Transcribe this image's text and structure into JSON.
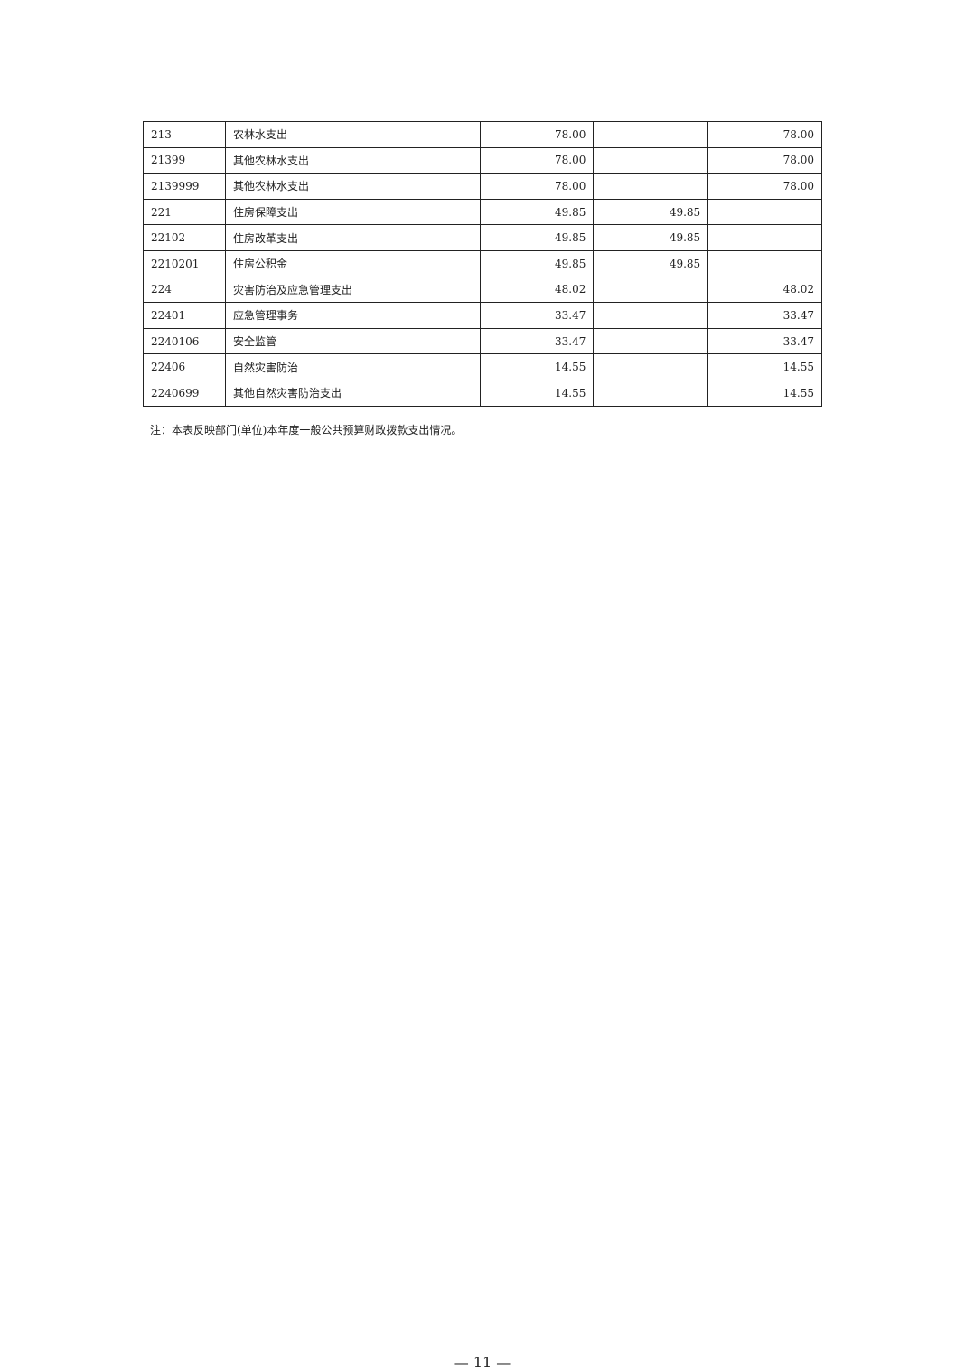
{
  "table": {
    "rows": [
      {
        "code": "213",
        "name": "农林水支出",
        "total": "78.00",
        "basic": "",
        "project": "78.00"
      },
      {
        "code": "21399",
        "name": "其他农林水支出",
        "total": "78.00",
        "basic": "",
        "project": "78.00"
      },
      {
        "code": "2139999",
        "name": "其他农林水支出",
        "total": "78.00",
        "basic": "",
        "project": "78.00"
      },
      {
        "code": "221",
        "name": "住房保障支出",
        "total": "49.85",
        "basic": "49.85",
        "project": ""
      },
      {
        "code": "22102",
        "name": "住房改革支出",
        "total": "49.85",
        "basic": "49.85",
        "project": ""
      },
      {
        "code": "2210201",
        "name": "住房公积金",
        "total": "49.85",
        "basic": "49.85",
        "project": ""
      },
      {
        "code": "224",
        "name": "灾害防治及应急管理支出",
        "total": "48.02",
        "basic": "",
        "project": "48.02"
      },
      {
        "code": "22401",
        "name": "应急管理事务",
        "total": "33.47",
        "basic": "",
        "project": "33.47"
      },
      {
        "code": "2240106",
        "name": "安全监管",
        "total": "33.47",
        "basic": "",
        "project": "33.47"
      },
      {
        "code": "22406",
        "name": "自然灾害防治",
        "total": "14.55",
        "basic": "",
        "project": "14.55"
      },
      {
        "code": "2240699",
        "name": "其他自然灾害防治支出",
        "total": "14.55",
        "basic": "",
        "project": "14.55"
      }
    ]
  },
  "note": "注：本表反映部门(单位)本年度一般公共预算财政拨款支出情况。",
  "page_number": "— 11 —"
}
